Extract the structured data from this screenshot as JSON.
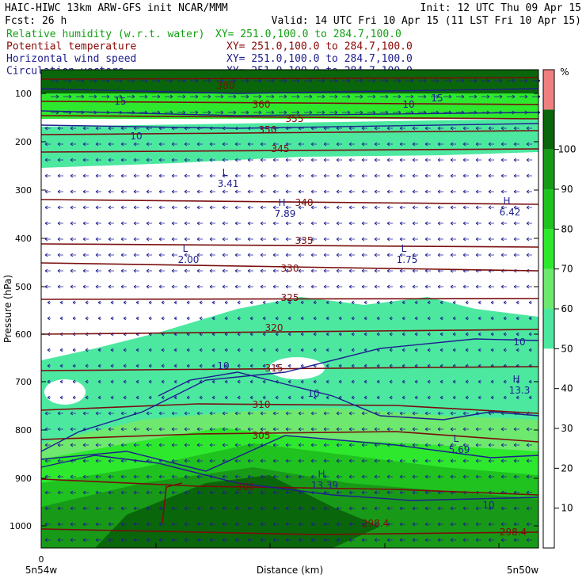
{
  "header": {
    "line1_left": "HAIC-HIWC 13km ARW-GFS init   NCAR/MMM",
    "line1_right": "Init: 12 UTC Thu 09 Apr 15",
    "line2_left": "Fcst:    26 h",
    "line2_right": "Valid: 14 UTC Fri 10 Apr 15 (11 LST Fri 10 Apr 15)",
    "fields": [
      {
        "name": "Relative humidity (w.r.t. water)",
        "xy": "XY= 251.0,100.0 to 284.7,100.0",
        "color": "#14a014"
      },
      {
        "name": "Potential temperature",
        "xy": "XY= 251.0,100.0 to 284.7,100.0",
        "color": "#8b0a0a"
      },
      {
        "name": "Horizontal wind speed",
        "xy": "XY= 251.0,100.0 to 284.7,100.0",
        "color": "#1c1c8c"
      },
      {
        "name": "Circulation vectors",
        "xy": "XY= 251.0,100.0 to 284.7,100.0",
        "color": "#1c1c8c"
      }
    ]
  },
  "colors": {
    "theta": "#7a0d0d",
    "wind": "#1e1e90",
    "rh_bins": [
      "#ffffff",
      "#ffffff",
      "#ffffff",
      "#ffffff",
      "#ffffff",
      "#4ce8a0",
      "#6ee86e",
      "#2ee82e",
      "#1fc21f",
      "#189a18",
      "#0a660a",
      "#f08080"
    ]
  },
  "chart_data": {
    "type": "cross-section",
    "ylabel": "Pressure (hPa)",
    "xlabel": "Distance (km)",
    "x_origin_label": "0",
    "x_left_label": "5n54w",
    "x_right_label": "5n50w",
    "y_ticks": [
      100,
      200,
      300,
      400,
      500,
      600,
      700,
      800,
      900,
      1000
    ],
    "colorbar_unit": "%",
    "colorbar_levels": [
      10,
      20,
      30,
      40,
      50,
      60,
      70,
      80,
      90,
      100
    ],
    "theta_labels": [
      "380",
      "360",
      "355",
      "350",
      "345",
      "340",
      "335",
      "330",
      "325",
      "320",
      "315",
      "310",
      "305",
      "300",
      "298.4",
      "298.4"
    ],
    "wind_labels": [
      "15",
      "15",
      "10",
      "10",
      "10",
      "10",
      "10",
      "10"
    ],
    "extrema": [
      {
        "type": "L",
        "value": "3.41"
      },
      {
        "type": "H",
        "value": "7.89"
      },
      {
        "type": "H",
        "value": "6.42"
      },
      {
        "type": "L",
        "value": "2.00"
      },
      {
        "type": "L",
        "value": "1.75"
      },
      {
        "type": "H",
        "value": "13.3"
      },
      {
        "type": "L",
        "value": "5.69"
      },
      {
        "type": "H",
        "value": "13.39"
      }
    ]
  }
}
